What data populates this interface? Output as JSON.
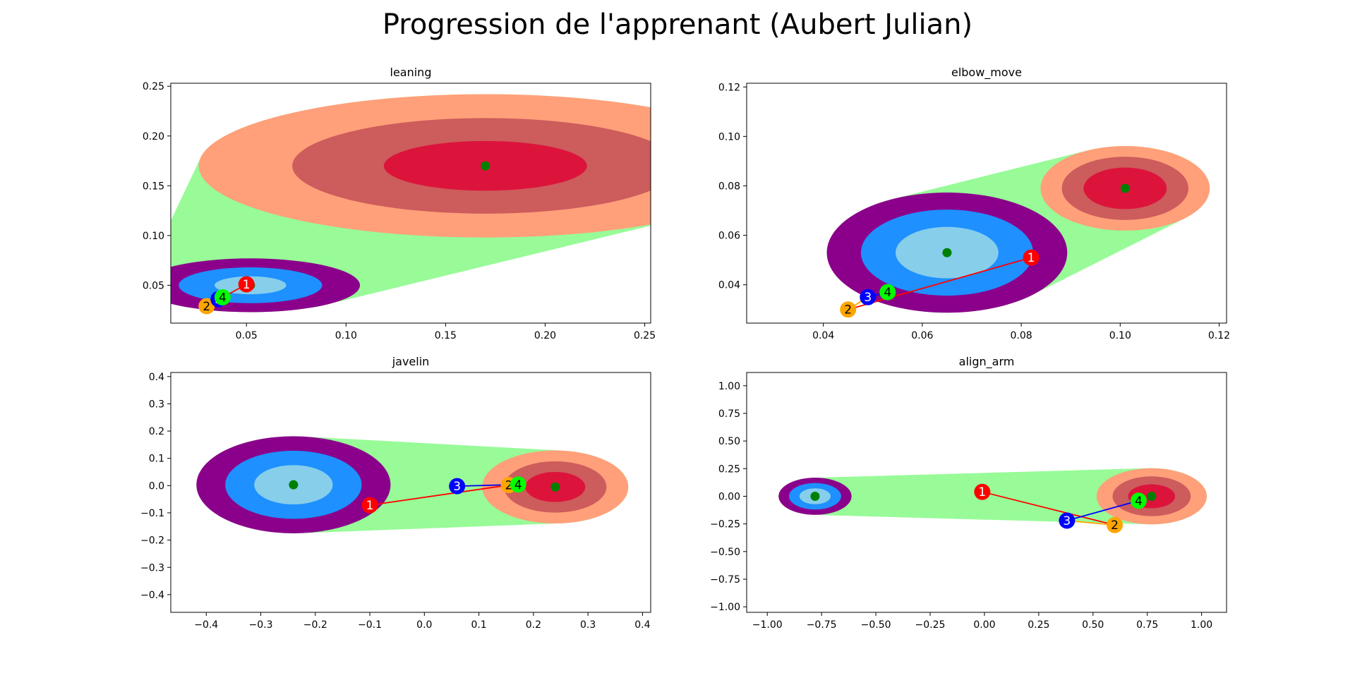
{
  "figure": {
    "title": "Progression de l'apprenant (Aubert Julian)"
  },
  "colors": {
    "student_rings": [
      "#8b008b",
      "#1e90ff",
      "#87ceeb"
    ],
    "expert_rings": [
      "#ffa07a",
      "#cd5c5c",
      "#dc143c"
    ],
    "hull": "#98fb98",
    "center": "#008000",
    "points": [
      "#ff0000",
      "#ffa500",
      "#0000ff",
      "#00ff00"
    ],
    "point_text": [
      "#ffffff",
      "#000000",
      "#ffffff",
      "#000000"
    ]
  },
  "chart_data": [
    {
      "type": "scatter",
      "title": "leaning",
      "xlim": [
        0.012,
        0.253
      ],
      "ylim": [
        0.012,
        0.253
      ],
      "xticks": [
        0.05,
        0.1,
        0.15,
        0.2,
        0.25
      ],
      "xticklabels": [
        "0.05",
        "0.10",
        "0.15",
        "0.20",
        "0.25"
      ],
      "yticks": [
        0.05,
        0.1,
        0.15,
        0.2,
        0.25
      ],
      "yticklabels": [
        "0.05",
        "0.10",
        "0.15",
        "0.20",
        "0.25"
      ],
      "student": {
        "center": [
          0.052,
          0.05
        ],
        "radii": [
          [
            0.055,
            0.027
          ],
          [
            0.036,
            0.018
          ],
          [
            0.018,
            0.009
          ]
        ]
      },
      "expert": {
        "center": [
          0.17,
          0.17
        ],
        "radii": [
          [
            0.144,
            0.072
          ],
          [
            0.097,
            0.048
          ],
          [
            0.051,
            0.025
          ]
        ]
      },
      "points": [
        {
          "label": "1",
          "x": 0.05,
          "y": 0.051
        },
        {
          "label": "2",
          "x": 0.03,
          "y": 0.029
        },
        {
          "label": "3",
          "x": 0.036,
          "y": 0.036
        },
        {
          "label": "4",
          "x": 0.038,
          "y": 0.038
        }
      ]
    },
    {
      "type": "scatter",
      "title": "elbow_move",
      "xlim": [
        0.0245,
        0.1215
      ],
      "ylim": [
        0.0245,
        0.1215
      ],
      "xticks": [
        0.04,
        0.06,
        0.08,
        0.1,
        0.12
      ],
      "xticklabels": [
        "0.04",
        "0.06",
        "0.08",
        "0.10",
        "0.12"
      ],
      "yticks": [
        0.04,
        0.06,
        0.08,
        0.1,
        0.12
      ],
      "yticklabels": [
        "0.04",
        "0.06",
        "0.08",
        "0.10",
        "0.12"
      ],
      "student": {
        "center": [
          0.065,
          0.053
        ],
        "radii": [
          [
            0.0243,
            0.0243
          ],
          [
            0.0174,
            0.0174
          ],
          [
            0.0104,
            0.0104
          ]
        ]
      },
      "expert": {
        "center": [
          0.101,
          0.079
        ],
        "radii": [
          [
            0.0171,
            0.0171
          ],
          [
            0.0128,
            0.0128
          ],
          [
            0.0084,
            0.0084
          ]
        ]
      },
      "points": [
        {
          "label": "1",
          "x": 0.082,
          "y": 0.051
        },
        {
          "label": "2",
          "x": 0.045,
          "y": 0.03
        },
        {
          "label": "3",
          "x": 0.049,
          "y": 0.035
        },
        {
          "label": "4",
          "x": 0.053,
          "y": 0.037
        }
      ]
    },
    {
      "type": "scatter",
      "title": "javelin",
      "xlim": [
        -0.465,
        0.415
      ],
      "ylim": [
        -0.465,
        0.415
      ],
      "xticks": [
        -0.4,
        -0.3,
        -0.2,
        -0.1,
        0.0,
        0.1,
        0.2,
        0.3,
        0.4
      ],
      "xticklabels": [
        "−0.4",
        "−0.3",
        "−0.2",
        "−0.1",
        "0.0",
        "0.1",
        "0.2",
        "0.3",
        "0.4"
      ],
      "yticks": [
        -0.4,
        -0.3,
        -0.2,
        -0.1,
        0.0,
        0.1,
        0.2,
        0.3,
        0.4
      ],
      "yticklabels": [
        "−0.4",
        "−0.3",
        "−0.2",
        "−0.1",
        "0.0",
        "0.1",
        "0.2",
        "0.3",
        "0.4"
      ],
      "student": {
        "center": [
          -0.24,
          0.003
        ],
        "radii": [
          [
            0.178,
            0.178
          ],
          [
            0.125,
            0.125
          ],
          [
            0.072,
            0.072
          ]
        ]
      },
      "expert": {
        "center": [
          0.24,
          -0.005
        ],
        "radii": [
          [
            0.134,
            0.134
          ],
          [
            0.094,
            0.094
          ],
          [
            0.055,
            0.055
          ]
        ]
      },
      "points": [
        {
          "label": "1",
          "x": -0.1,
          "y": -0.072
        },
        {
          "label": "2",
          "x": 0.155,
          "y": 0.002
        },
        {
          "label": "3",
          "x": 0.06,
          "y": -0.002
        },
        {
          "label": "4",
          "x": 0.172,
          "y": 0.004
        }
      ]
    },
    {
      "type": "scatter",
      "title": "align_arm",
      "xlim": [
        -1.095,
        1.115
      ],
      "ylim": [
        -1.05,
        1.12
      ],
      "xticks": [
        -1.0,
        -0.75,
        -0.5,
        -0.25,
        0.0,
        0.25,
        0.5,
        0.75,
        1.0
      ],
      "xticklabels": [
        "−1.00",
        "−0.75",
        "−0.50",
        "−0.25",
        "0.00",
        "0.25",
        "0.50",
        "0.75",
        "1.00"
      ],
      "yticks": [
        -1.0,
        -0.75,
        -0.5,
        -0.25,
        0.0,
        0.25,
        0.5,
        0.75,
        1.0
      ],
      "yticklabels": [
        "−1.00",
        "−0.75",
        "−0.50",
        "−0.25",
        "0.00",
        "0.25",
        "0.50",
        "0.75",
        "1.00"
      ],
      "student": {
        "center": [
          -0.78,
          0.0
        ],
        "radii": [
          [
            0.168,
            0.168
          ],
          [
            0.12,
            0.12
          ],
          [
            0.072,
            0.072
          ]
        ]
      },
      "expert": {
        "center": [
          0.77,
          0.0
        ],
        "radii": [
          [
            0.254,
            0.254
          ],
          [
            0.18,
            0.18
          ],
          [
            0.108,
            0.108
          ]
        ]
      },
      "points": [
        {
          "label": "1",
          "x": -0.01,
          "y": 0.04
        },
        {
          "label": "2",
          "x": 0.6,
          "y": -0.26
        },
        {
          "label": "3",
          "x": 0.38,
          "y": -0.22
        },
        {
          "label": "4",
          "x": 0.71,
          "y": -0.04
        }
      ]
    }
  ]
}
